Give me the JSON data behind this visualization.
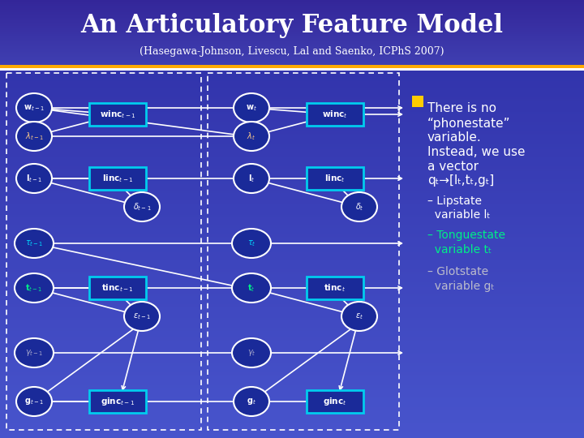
{
  "title": "An Articulatory Feature Model",
  "subtitle": "(Hasegawa-Johnson, Livescu, Lal and Saenko, ICPhS 2007)",
  "bullet_text_lines": [
    {
      "text": "There is no",
      "indent": 0,
      "color": "#ffffff",
      "size": 11
    },
    {
      "text": "“phonestate”",
      "indent": 0,
      "color": "#ffffff",
      "size": 11
    },
    {
      "text": "variable.",
      "indent": 0,
      "color": "#ffffff",
      "size": 11
    },
    {
      "text": "Instead, we use",
      "indent": 0,
      "color": "#ffffff",
      "size": 11
    },
    {
      "text": "a vector",
      "indent": 0,
      "color": "#ffffff",
      "size": 11
    },
    {
      "text": "qₜ→[lₜ,tₜ,gₜ]",
      "indent": 0,
      "color": "#ffffff",
      "size": 11
    },
    {
      "text": "– Lipstate",
      "indent": 1,
      "color": "#ffffff",
      "size": 10
    },
    {
      "text": "  variable lₜ",
      "indent": 1,
      "color": "#ffffff",
      "size": 10
    },
    {
      "text": "– Tonguestate",
      "indent": 1,
      "color": "#00ee88",
      "size": 10
    },
    {
      "text": "  variable tₜ",
      "indent": 1,
      "color": "#00ee88",
      "size": 10
    },
    {
      "text": "– Glotstate",
      "indent": 1,
      "color": "#bbbbcc",
      "size": 10
    },
    {
      "text": "  variable gₜ",
      "indent": 1,
      "color": "#bbbbcc",
      "size": 10
    }
  ]
}
